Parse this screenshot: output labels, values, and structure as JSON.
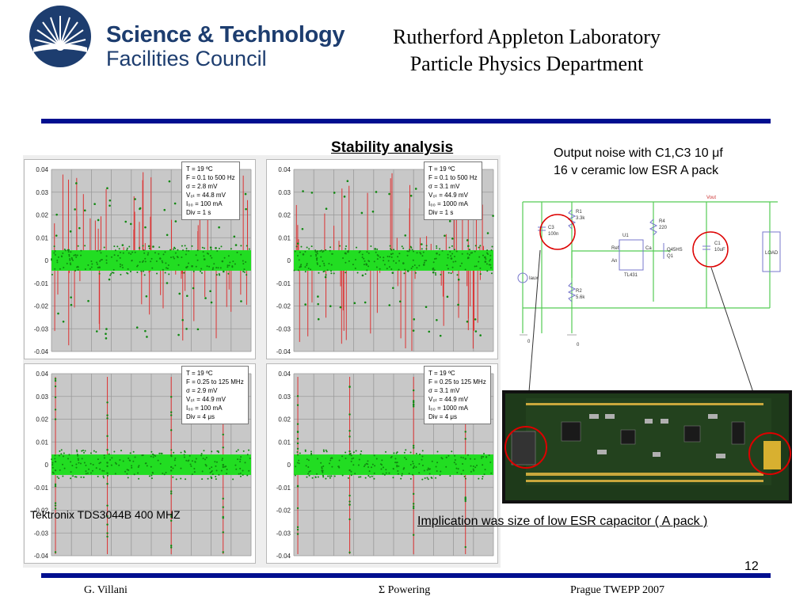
{
  "header": {
    "org_line1": "Science & Technology",
    "org_line2": "Facilities Council",
    "lab_line1": "Rutherford Appleton Laboratory",
    "lab_line2": "Particle Physics Department",
    "brand_color": "#1d3d6f",
    "rule_color": "#000f8f"
  },
  "slide": {
    "title": "Stability analysis",
    "instrument_label": "Tektronix TDS3044B 400 MHZ",
    "page_number": "12"
  },
  "scopes": [
    {
      "y_ticks": [
        "0.04",
        "0.03",
        "0.02",
        "0.01",
        "0",
        "-0.01",
        "-0.02",
        "-0.03",
        "-0.04"
      ],
      "legend": [
        "T = 19 ºC",
        "F = 0.1 to 500 Hz",
        "σ = 2.8 mV",
        "V₀ₜ = 44.8 mV",
        "I₀₀ = 100 mA",
        "Div = 1 s"
      ],
      "noise": "dense-spikes"
    },
    {
      "y_ticks": [
        "0.04",
        "0.03",
        "0.02",
        "0.01",
        "0",
        "-0.01",
        "-0.02",
        "-0.03",
        "-0.04"
      ],
      "legend": [
        "T = 19 ºC",
        "F = 0.1 to 500 Hz",
        "σ = 3.1 mV",
        "V₀ₜ = 44.9 mV",
        "I₀₀ = 1000 mA",
        "Div = 1 s"
      ],
      "noise": "dense-spikes"
    },
    {
      "y_ticks": [
        "0.04",
        "0.03",
        "0.02",
        "0.01",
        "0",
        "-0.01",
        "-0.02",
        "-0.03",
        "-0.04"
      ],
      "legend": [
        "T = 19 ºC",
        "F = 0.25 to 125 MHz",
        "σ = 2.9 mV",
        "V₀ₜ = 44.9 mV",
        "I₀₀ = 100 mA",
        "Div = 4 μs"
      ],
      "noise": "periodic-spikes"
    },
    {
      "y_ticks": [
        "0.04",
        "0.03",
        "0.02",
        "0.01",
        "0",
        "-0.01",
        "-0.02",
        "-0.03",
        "-0.04"
      ],
      "legend": [
        "T = 19 ºC",
        "F = 0.25 to 125 MHz",
        "σ = 3.1 mV",
        "V₀ₜ = 44.9 mV",
        "I₀₀ = 1000 mA",
        "Div = 4 μs"
      ],
      "noise": "periodic-spikes"
    }
  ],
  "right": {
    "caption_line1": "Output noise with C1,C3 10 μf",
    "caption_line2": "16 v ceramic low ESR A pack",
    "implication": "Implication was size of low ESR capacitor ( A pack )",
    "schematic": {
      "labels": [
        "Vout",
        "R1",
        "3.3k",
        "C3",
        "100n",
        "U1",
        "Ref",
        "An",
        "Ca",
        "TL431",
        "R4",
        "220",
        "Q45HS",
        "Q1",
        "C1",
        "10uF",
        "LOAD",
        "R2",
        "5.6k",
        "Iaux",
        "0",
        "0"
      ]
    }
  },
  "footer": {
    "author": "G. Villani",
    "topic": "Σ Powering",
    "event": "Prague TWEPP 2007"
  },
  "colors": {
    "trace_green": "#22dd22",
    "spike_red": "#dd3333",
    "plot_bg": "#c8c8c8",
    "highlight_circle": "#dd0000"
  }
}
